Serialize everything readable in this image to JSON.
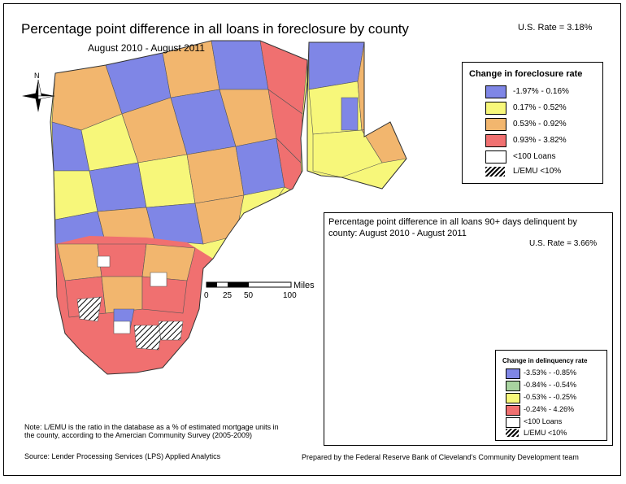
{
  "title": "Percentage point difference in all loans in foreclosure by county",
  "subtitle": "August 2010 - August 2011",
  "us_rate": "U.S. Rate = 3.18%",
  "legend": {
    "title": "Change in foreclosure rate",
    "items": [
      {
        "label": "-1.97% - 0.16%",
        "color": "#7f86e6"
      },
      {
        "label": "0.17% - 0.52%",
        "color": "#f7f77a"
      },
      {
        "label": "0.53% - 0.92%",
        "color": "#f2b66e"
      },
      {
        "label": "0.93% - 3.82%",
        "color": "#f07070"
      },
      {
        "label": "<100 Loans",
        "color": "#ffffff"
      },
      {
        "label": "L/EMU <10%",
        "pattern": "hatch"
      }
    ]
  },
  "inset": {
    "title": "Percentage point difference in all loans 90+ days delinquent by county: August 2010 - August 2011",
    "us_rate": "U.S. Rate = 3.66%",
    "legend": {
      "title": "Change in delinquency rate",
      "items": [
        {
          "label": "-3.53% - -0.85%",
          "color": "#7f86e6"
        },
        {
          "label": "-0.84% - -0.54%",
          "color": "#a8d3a0"
        },
        {
          "label": "-0.53% - -0.25%",
          "color": "#f7f77a"
        },
        {
          "label": "-0.24% - 4.26%",
          "color": "#f07070"
        },
        {
          "label": "<100 Loans",
          "color": "#ffffff"
        },
        {
          "label": "L/EMU <10%",
          "pattern": "hatch"
        }
      ]
    }
  },
  "scale": {
    "ticks": [
      "0",
      "25",
      "50",
      "100"
    ],
    "unit": "Miles"
  },
  "north_label": "N",
  "note": "Note: L/EMU is the ratio in the database as a % of estimated mortgage units in the county, according to the Amercian Community Survey (2005-2009)",
  "source": "Source: Lender Processing Services (LPS) Applied Analytics",
  "prepared_by": "Prepared by the Federal Reserve Bank of Cleveland's Community Development team"
}
